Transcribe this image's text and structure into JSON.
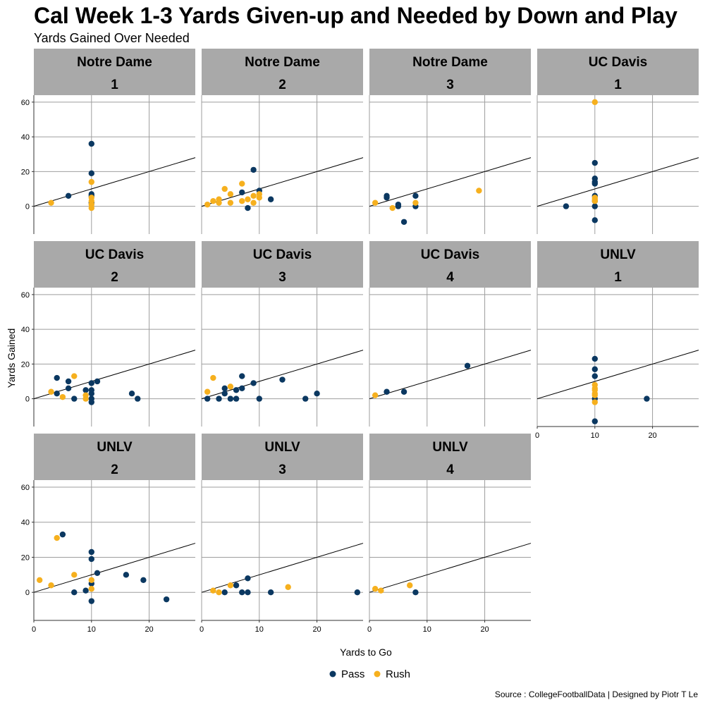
{
  "title": "Cal Week 1-3 Yards Given-up and Needed by Down and Play",
  "subtitle": "Yards Gained Over Needed",
  "source": "Source : CollegeFootballData | Designed by Piotr T Le",
  "colors": {
    "pass": "#0b3861",
    "rush": "#f6b01e",
    "strip": "#a9a9a9",
    "grid": "#9e9e9e",
    "reference_line": "#000000"
  },
  "chart_data": {
    "type": "scatter",
    "facet_by": [
      "opponent",
      "down"
    ],
    "xlabel": "Yards to Go",
    "ylabel": "Yards Gained",
    "xlim": [
      0,
      28
    ],
    "ylim": [
      -16,
      64
    ],
    "x_ticks": [
      0,
      10,
      20
    ],
    "y_ticks": [
      0,
      20,
      40,
      60
    ],
    "reference_line": {
      "slope": 1,
      "intercept": 0,
      "label": "Yards Gained Over Needed"
    },
    "legend": {
      "position": "bottom",
      "entries": [
        {
          "name": "Pass",
          "key": "pass"
        },
        {
          "name": "Rush",
          "key": "rush"
        }
      ]
    },
    "panels": [
      {
        "opponent": "Notre Dame",
        "down": "1",
        "pass": [
          [
            6,
            6
          ],
          [
            10,
            36
          ],
          [
            10,
            19
          ],
          [
            10,
            7
          ],
          [
            10,
            6
          ],
          [
            10,
            2
          ]
        ],
        "rush": [
          [
            3,
            2
          ],
          [
            10,
            14
          ],
          [
            10,
            5
          ],
          [
            10,
            3
          ],
          [
            10,
            1
          ],
          [
            10,
            -1
          ]
        ]
      },
      {
        "opponent": "Notre Dame",
        "down": "2",
        "pass": [
          [
            7,
            8
          ],
          [
            8,
            -1
          ],
          [
            9,
            21
          ],
          [
            10,
            9
          ],
          [
            12,
            4
          ]
        ],
        "rush": [
          [
            1,
            1
          ],
          [
            2,
            3
          ],
          [
            3,
            4
          ],
          [
            3,
            2
          ],
          [
            4,
            10
          ],
          [
            5,
            7
          ],
          [
            5,
            2
          ],
          [
            7,
            13
          ],
          [
            7,
            3
          ],
          [
            8,
            4
          ],
          [
            9,
            6
          ],
          [
            9,
            2
          ],
          [
            10,
            7
          ],
          [
            10,
            5
          ]
        ]
      },
      {
        "opponent": "Notre Dame",
        "down": "3",
        "pass": [
          [
            3,
            6
          ],
          [
            3,
            5
          ],
          [
            5,
            1
          ],
          [
            5,
            0
          ],
          [
            6,
            -9
          ],
          [
            8,
            6
          ],
          [
            8,
            0
          ]
        ],
        "rush": [
          [
            1,
            2
          ],
          [
            4,
            -1
          ],
          [
            8,
            2
          ],
          [
            19,
            9
          ]
        ]
      },
      {
        "opponent": "UC Davis",
        "down": "1",
        "pass": [
          [
            5,
            0
          ],
          [
            10,
            25
          ],
          [
            10,
            16
          ],
          [
            10,
            14
          ],
          [
            10,
            13
          ],
          [
            10,
            6
          ],
          [
            10,
            3
          ],
          [
            10,
            0
          ],
          [
            10,
            -8
          ]
        ],
        "rush": [
          [
            10,
            60
          ],
          [
            10,
            5
          ],
          [
            10,
            4
          ],
          [
            10,
            3
          ]
        ]
      },
      {
        "opponent": "UC Davis",
        "down": "2",
        "pass": [
          [
            4,
            12
          ],
          [
            4,
            3
          ],
          [
            6,
            10
          ],
          [
            6,
            6
          ],
          [
            7,
            0
          ],
          [
            9,
            5
          ],
          [
            10,
            9
          ],
          [
            10,
            5
          ],
          [
            10,
            3
          ],
          [
            10,
            0
          ],
          [
            10,
            -2
          ],
          [
            11,
            10
          ],
          [
            17,
            3
          ],
          [
            18,
            0
          ]
        ],
        "rush": [
          [
            3,
            4
          ],
          [
            5,
            1
          ],
          [
            7,
            13
          ],
          [
            9,
            2
          ],
          [
            9,
            0
          ]
        ]
      },
      {
        "opponent": "UC Davis",
        "down": "3",
        "pass": [
          [
            1,
            0
          ],
          [
            3,
            0
          ],
          [
            4,
            6
          ],
          [
            4,
            3
          ],
          [
            5,
            0
          ],
          [
            6,
            5
          ],
          [
            6,
            0
          ],
          [
            7,
            13
          ],
          [
            7,
            6
          ],
          [
            9,
            9
          ],
          [
            10,
            0
          ],
          [
            14,
            11
          ],
          [
            18,
            0
          ],
          [
            20,
            3
          ]
        ],
        "rush": [
          [
            1,
            4
          ],
          [
            2,
            12
          ],
          [
            5,
            7
          ]
        ]
      },
      {
        "opponent": "UC Davis",
        "down": "4",
        "pass": [
          [
            3,
            4
          ],
          [
            6,
            4
          ],
          [
            17,
            19
          ]
        ],
        "rush": [
          [
            1,
            2
          ]
        ]
      },
      {
        "opponent": "UNLV",
        "down": "1",
        "pass": [
          [
            10,
            23
          ],
          [
            10,
            17
          ],
          [
            10,
            13
          ],
          [
            10,
            0
          ],
          [
            10,
            -13
          ],
          [
            19,
            0
          ]
        ],
        "rush": [
          [
            10,
            8
          ],
          [
            10,
            6
          ],
          [
            10,
            5
          ],
          [
            10,
            3
          ],
          [
            10,
            2
          ],
          [
            10,
            -2
          ]
        ]
      },
      {
        "opponent": "UNLV",
        "down": "2",
        "pass": [
          [
            5,
            33
          ],
          [
            7,
            0
          ],
          [
            9,
            1
          ],
          [
            10,
            23
          ],
          [
            10,
            19
          ],
          [
            10,
            5
          ],
          [
            10,
            -5
          ],
          [
            11,
            11
          ],
          [
            16,
            10
          ],
          [
            19,
            7
          ],
          [
            23,
            -4
          ]
        ],
        "rush": [
          [
            1,
            7
          ],
          [
            3,
            4
          ],
          [
            4,
            31
          ],
          [
            7,
            10
          ],
          [
            10,
            7
          ],
          [
            10,
            2
          ]
        ]
      },
      {
        "opponent": "UNLV",
        "down": "3",
        "pass": [
          [
            4,
            0
          ],
          [
            6,
            4
          ],
          [
            7,
            0
          ],
          [
            8,
            8
          ],
          [
            8,
            0
          ],
          [
            12,
            0
          ],
          [
            27,
            0
          ]
        ],
        "rush": [
          [
            2,
            1
          ],
          [
            3,
            0
          ],
          [
            5,
            4
          ],
          [
            15,
            3
          ]
        ]
      },
      {
        "opponent": "UNLV",
        "down": "4",
        "pass": [
          [
            8,
            0
          ]
        ],
        "rush": [
          [
            1,
            2
          ],
          [
            2,
            1
          ],
          [
            7,
            4
          ]
        ]
      }
    ]
  }
}
